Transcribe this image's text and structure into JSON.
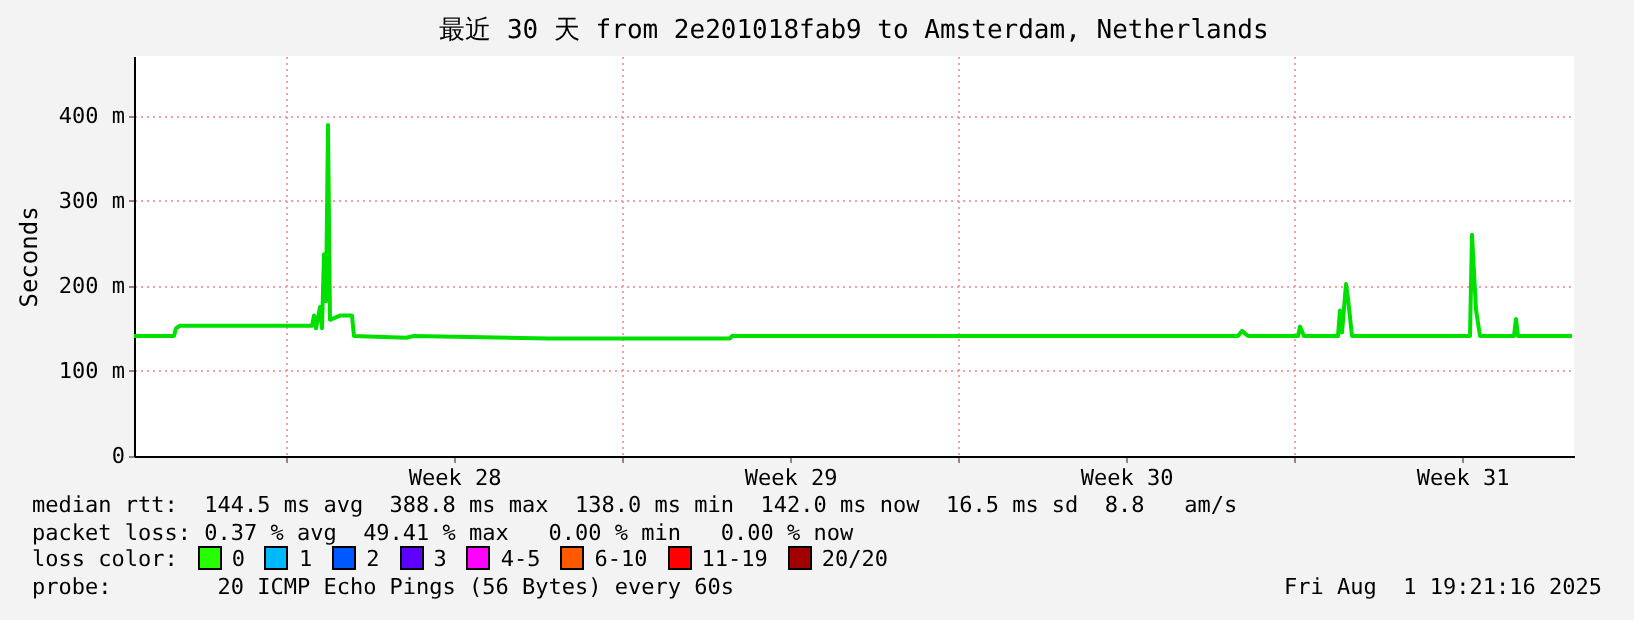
{
  "chart_data": {
    "type": "line",
    "title": "最近 30 天 from 2e201018fab9 to Amsterdam, Netherlands",
    "ylabel": "Seconds",
    "xlim": [
      "2025-07-02T20:00",
      "2025-08-01T20:00"
    ],
    "xticks": [
      {
        "value": "2025-07-06T00:00",
        "label": null
      },
      {
        "value": "2025-07-09T12:00",
        "label": "Week 28"
      },
      {
        "value": "2025-07-13T00:00",
        "label": null
      },
      {
        "value": "2025-07-16T12:00",
        "label": "Week 29"
      },
      {
        "value": "2025-07-20T00:00",
        "label": null
      },
      {
        "value": "2025-07-23T12:00",
        "label": "Week 30"
      },
      {
        "value": "2025-07-27T00:00",
        "label": null
      },
      {
        "value": "2025-07-30T12:00",
        "label": "Week 31"
      }
    ],
    "ylim": [
      0,
      470
    ],
    "yticks": [
      0,
      {
        "value": 100,
        "label": "100 m"
      },
      {
        "value": 200,
        "label": "200 m"
      },
      {
        "value": 300,
        "label": "300 m"
      },
      {
        "value": 400,
        "label": "400 m"
      }
    ],
    "grid": true,
    "x": [
      "2025-07-02T20:00",
      "2025-07-03T16:00",
      "2025-07-03T17:00",
      "2025-07-03T19:00",
      "2025-07-06T13:00",
      "2025-07-06T14:00",
      "2025-07-06T15:00",
      "2025-07-06T17:00",
      "2025-07-06T18:00",
      "2025-07-06T19:00",
      "2025-07-06T20:00",
      "2025-07-06T21:00",
      "2025-07-06T22:00",
      "2025-07-07T03:00",
      "2025-07-07T09:00",
      "2025-07-07T10:00",
      "2025-07-08T12:00",
      "2025-07-08T16:00",
      "2025-07-11T11:00",
      "2025-07-15T06:00",
      "2025-07-15T07:00",
      "2025-07-25T20:00",
      "2025-07-25T22:00",
      "2025-07-26T01:00",
      "2025-07-27T02:00",
      "2025-07-27T03:00",
      "2025-07-27T05:00",
      "2025-07-27T22:00",
      "2025-07-27T23:00",
      "2025-07-28T00:00",
      "2025-07-28T02:00",
      "2025-07-28T03:00",
      "2025-07-28T05:00",
      "2025-07-30T16:00",
      "2025-07-30T17:00",
      "2025-07-30T19:00",
      "2025-07-30T21:00",
      "2025-07-31T14:00",
      "2025-07-31T15:00",
      "2025-07-31T16:00",
      "2025-08-01T19:00"
    ],
    "series": [
      {
        "color": "#00e000",
        "values": [
          141,
          141,
          150,
          153,
          153,
          165,
          150,
          175,
          150,
          237,
          182,
          388.8,
          160,
          165,
          165,
          141,
          139,
          141,
          138,
          138,
          141,
          141,
          147,
          141,
          141,
          152,
          141,
          141,
          171,
          145,
          202,
          185,
          141,
          141,
          260,
          172,
          141,
          141,
          161,
          141,
          141
        ]
      }
    ],
    "annotations": [
      "median rtt:  144.5 ms avg  388.8 ms max  138.0 ms min  142.0 ms now  16.5 ms sd  8.8   am/s",
      "packet loss: 0.37 % avg  49.41 % max   0.00 % min   0.00 % now",
      "loss color:",
      "0",
      "1",
      "2",
      "3",
      "4-5",
      "6-10",
      "11-19",
      "20/20",
      "probe:        20 ICMP Echo Pings (56 Bytes) every 60s",
      "Fri Aug  1 19:21:16 2025"
    ]
  }
}
